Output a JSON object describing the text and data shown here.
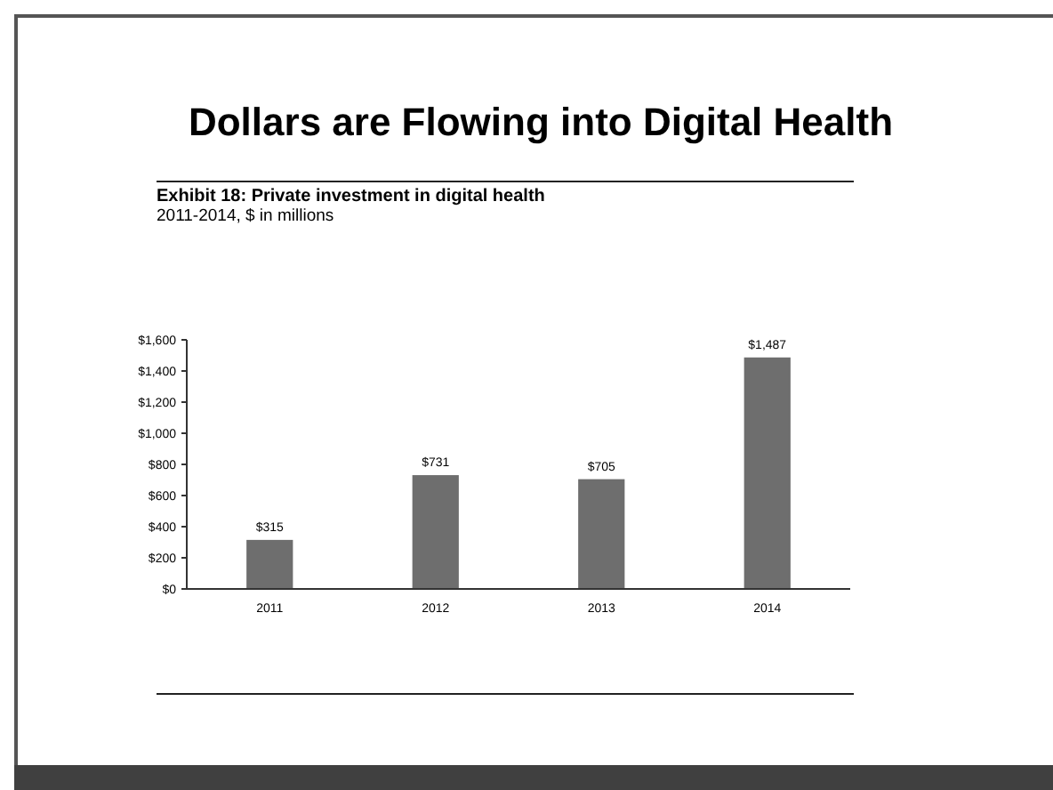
{
  "chart_data": {
    "type": "bar",
    "title": "Dollars are Flowing into Digital Health",
    "subtitle": "Exhibit 18: Private investment in digital health\n2011-2014, $ in millions",
    "categories": [
      "2011",
      "2012",
      "2013",
      "2014"
    ],
    "values": [
      315,
      731,
      705,
      1487
    ],
    "color": "#6e6e6e",
    "value_labels": [
      "$315",
      "$731",
      "$705",
      "$1,487"
    ],
    "ylim": [
      0,
      1600
    ],
    "yticks": [
      {
        "value": 0,
        "label": "$0"
      },
      {
        "value": 200,
        "label": "$200"
      },
      {
        "value": 400,
        "label": "$400"
      },
      {
        "value": 600,
        "label": "$600"
      },
      {
        "value": 800,
        "label": "$800"
      },
      {
        "value": 1000,
        "label": "$1,000"
      },
      {
        "value": 1200,
        "label": "$1,200"
      },
      {
        "value": 1400,
        "label": "$1,400"
      },
      {
        "value": 1600,
        "label": "$1,600"
      }
    ],
    "grid": false
  }
}
